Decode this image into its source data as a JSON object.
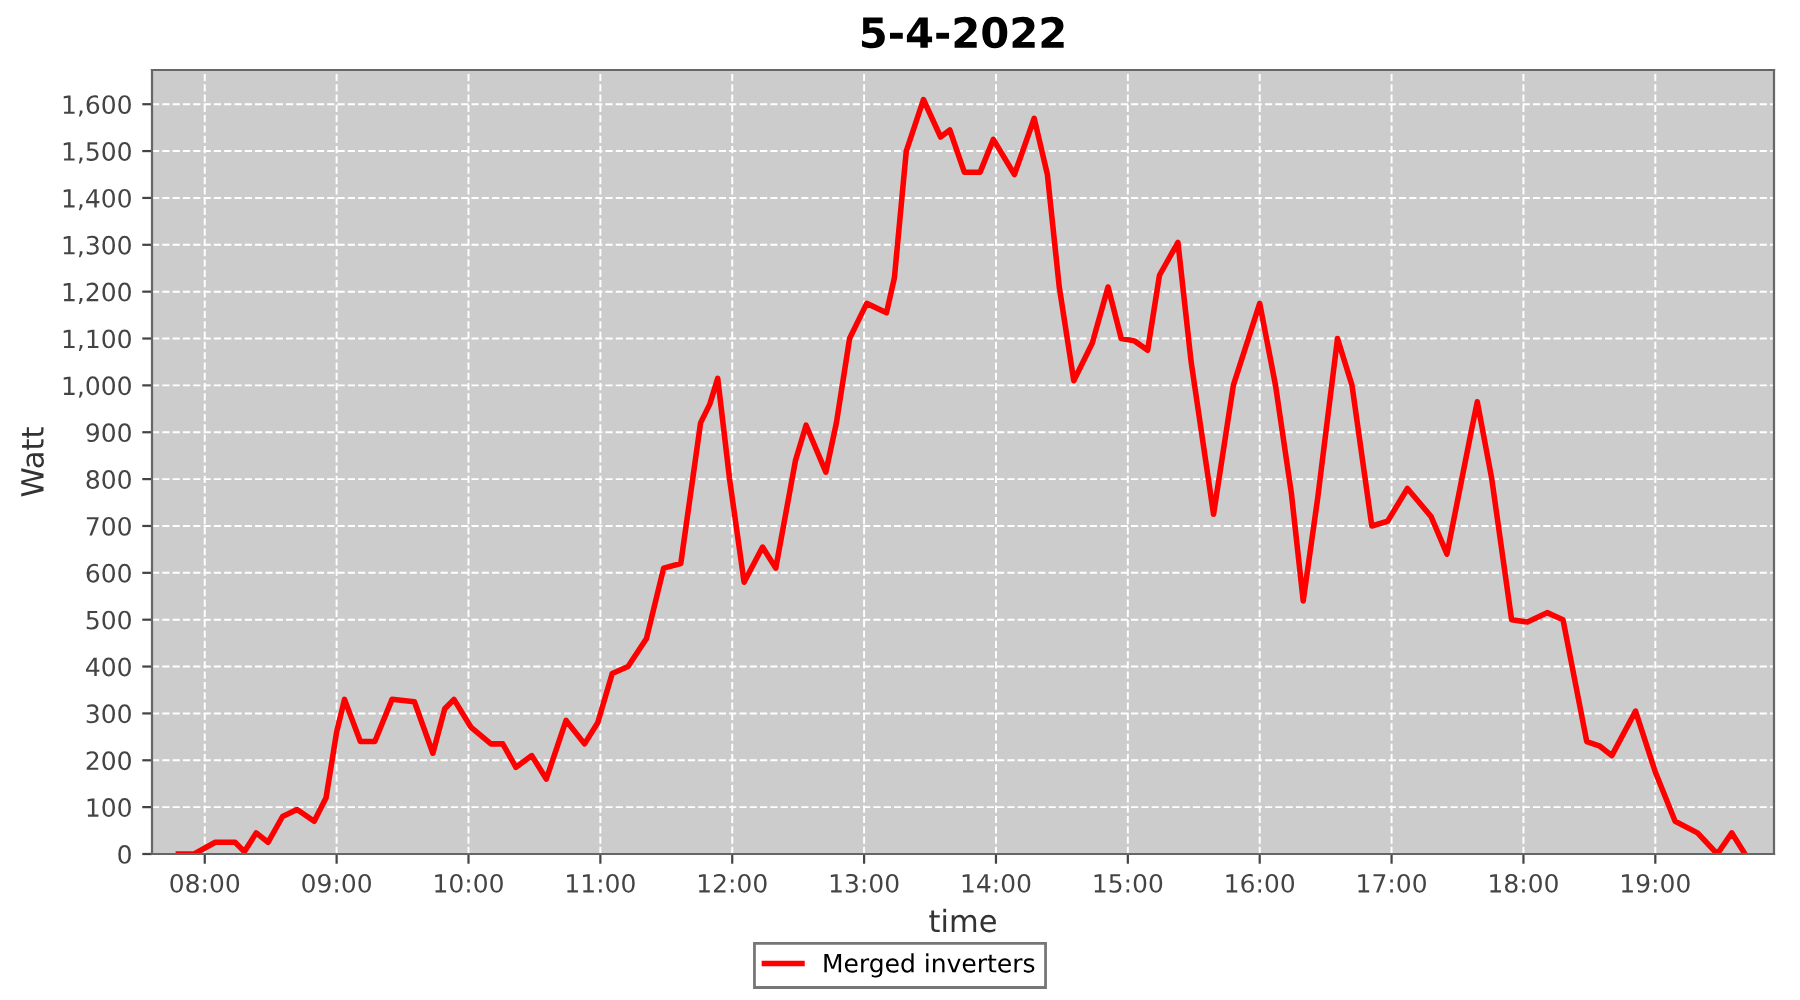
{
  "chart_data": {
    "type": "line",
    "title": "5-4-2022",
    "xlabel": "time",
    "ylabel": "Watt",
    "series": [
      {
        "name": "Merged inverters",
        "color": "#ff0000",
        "x": [
          7.8,
          7.92,
          8.08,
          8.23,
          8.3,
          8.39,
          8.48,
          8.59,
          8.7,
          8.83,
          8.92,
          9.0,
          9.06,
          9.18,
          9.29,
          9.42,
          9.59,
          9.73,
          9.82,
          9.89,
          10.02,
          10.17,
          10.26,
          10.36,
          10.48,
          10.59,
          10.74,
          10.88,
          10.98,
          11.09,
          11.21,
          11.35,
          11.48,
          11.61,
          11.7,
          11.76,
          11.83,
          11.89,
          11.98,
          12.09,
          12.23,
          12.33,
          12.48,
          12.56,
          12.71,
          12.79,
          12.89,
          13.02,
          13.17,
          13.23,
          13.32,
          13.45,
          13.58,
          13.65,
          13.76,
          13.88,
          13.98,
          14.14,
          14.29,
          14.39,
          14.48,
          14.59,
          14.73,
          14.85,
          14.95,
          15.05,
          15.15,
          15.24,
          15.38,
          15.48,
          15.65,
          15.8,
          16.0,
          16.12,
          16.24,
          16.33,
          16.44,
          16.59,
          16.7,
          16.85,
          16.97,
          17.12,
          17.3,
          17.42,
          17.61,
          17.65,
          17.76,
          17.91,
          18.03,
          18.18,
          18.3,
          18.48,
          18.58,
          18.67,
          18.85,
          19.0,
          19.15,
          19.32,
          19.47,
          19.58,
          19.68
        ],
        "values": [
          0,
          0,
          25,
          25,
          5,
          45,
          25,
          80,
          95,
          70,
          120,
          260,
          330,
          240,
          240,
          330,
          325,
          215,
          310,
          330,
          270,
          235,
          235,
          185,
          210,
          160,
          285,
          235,
          280,
          385,
          400,
          460,
          610,
          620,
          800,
          920,
          960,
          1015,
          800,
          580,
          655,
          610,
          840,
          915,
          815,
          920,
          1100,
          1175,
          1155,
          1230,
          1500,
          1610,
          1530,
          1545,
          1455,
          1455,
          1525,
          1450,
          1570,
          1450,
          1210,
          1010,
          1090,
          1210,
          1100,
          1095,
          1075,
          1235,
          1305,
          1050,
          725,
          1000,
          1175,
          1000,
          770,
          540,
          760,
          1100,
          1000,
          700,
          710,
          780,
          720,
          640,
          910,
          965,
          800,
          500,
          495,
          515,
          500,
          240,
          230,
          210,
          305,
          175,
          70,
          45,
          0,
          45,
          0
        ]
      }
    ],
    "xlim": [
      7.6,
      19.9
    ],
    "xticks": [
      {
        "value": 8,
        "label": "08:00"
      },
      {
        "value": 9,
        "label": "09:00"
      },
      {
        "value": 10,
        "label": "10:00"
      },
      {
        "value": 11,
        "label": "11:00"
      },
      {
        "value": 12,
        "label": "12:00"
      },
      {
        "value": 13,
        "label": "13:00"
      },
      {
        "value": 14,
        "label": "14:00"
      },
      {
        "value": 15,
        "label": "15:00"
      },
      {
        "value": 16,
        "label": "16:00"
      },
      {
        "value": 17,
        "label": "17:00"
      },
      {
        "value": 18,
        "label": "18:00"
      },
      {
        "value": 19,
        "label": "19:00"
      }
    ],
    "ylim": [
      0,
      1673
    ],
    "yticks": [
      0,
      100,
      200,
      300,
      400,
      500,
      600,
      700,
      800,
      900,
      {
        "value": 1000,
        "label": "1,000"
      },
      {
        "value": 1100,
        "label": "1,100"
      },
      {
        "value": 1200,
        "label": "1,200"
      },
      {
        "value": 1300,
        "label": "1,300"
      },
      {
        "value": 1400,
        "label": "1,400"
      },
      {
        "value": 1500,
        "label": "1,500"
      },
      {
        "value": 1600,
        "label": "1,600"
      }
    ],
    "grid": true,
    "legend": "bottom",
    "line_style": "solid",
    "marker": "none"
  }
}
